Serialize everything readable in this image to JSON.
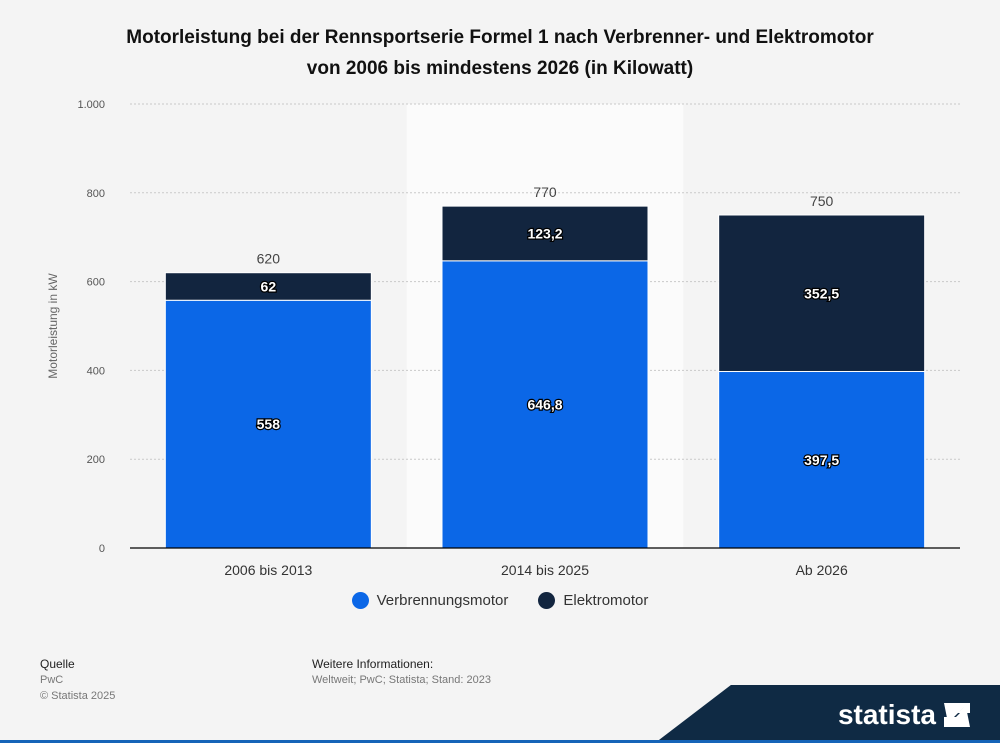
{
  "chart_data": {
    "type": "bar",
    "stacked": true,
    "title": "Motorleistung bei der Rennsportserie Formel 1 nach Verbrenner- und Elektromotor von 2006 bis mindestens 2026 (in Kilowatt)",
    "title_lines": [
      "Motorleistung bei der Rennsportserie Formel 1 nach Verbrenner- und Elektromotor",
      "von 2006 bis mindestens 2026 (in Kilowatt)"
    ],
    "xlabel": "",
    "ylabel": "Motorleistung in kW",
    "ylim": [
      0,
      1000
    ],
    "yticks": [
      0,
      200,
      400,
      600,
      800,
      1000
    ],
    "ytick_labels": [
      "0",
      "200",
      "400",
      "600",
      "800",
      "1.000"
    ],
    "categories": [
      "2006 bis 2013",
      "2014 bis 2025",
      "Ab 2026"
    ],
    "series": [
      {
        "name": "Verbrennungsmotor",
        "color": "#0b67e7",
        "values": [
          558,
          646.8,
          397.5
        ],
        "labels": [
          "558",
          "646,8",
          "397,5"
        ]
      },
      {
        "name": "Elektromotor",
        "color": "#12253f",
        "values": [
          62,
          123.2,
          352.5
        ],
        "labels": [
          "62",
          "123,2",
          "352,5"
        ]
      }
    ],
    "totals": [
      620,
      770,
      750
    ],
    "total_labels": [
      "620",
      "770",
      "750"
    ],
    "highlighted_category": "2014 bis 2025",
    "legend_position": "bottom",
    "grid": true
  },
  "legend": {
    "items": [
      {
        "label": "Verbrennungsmotor",
        "color": "#0b67e7"
      },
      {
        "label": "Elektromotor",
        "color": "#12253f"
      }
    ]
  },
  "footer": {
    "source_heading": "Quelle",
    "source_name": "PwC",
    "copyright": "© Statista 2025",
    "info_heading": "Weitere Informationen:",
    "info_text": "Weltweit; PwC; Statista; Stand: 2023"
  },
  "brand": {
    "name": "statista"
  }
}
